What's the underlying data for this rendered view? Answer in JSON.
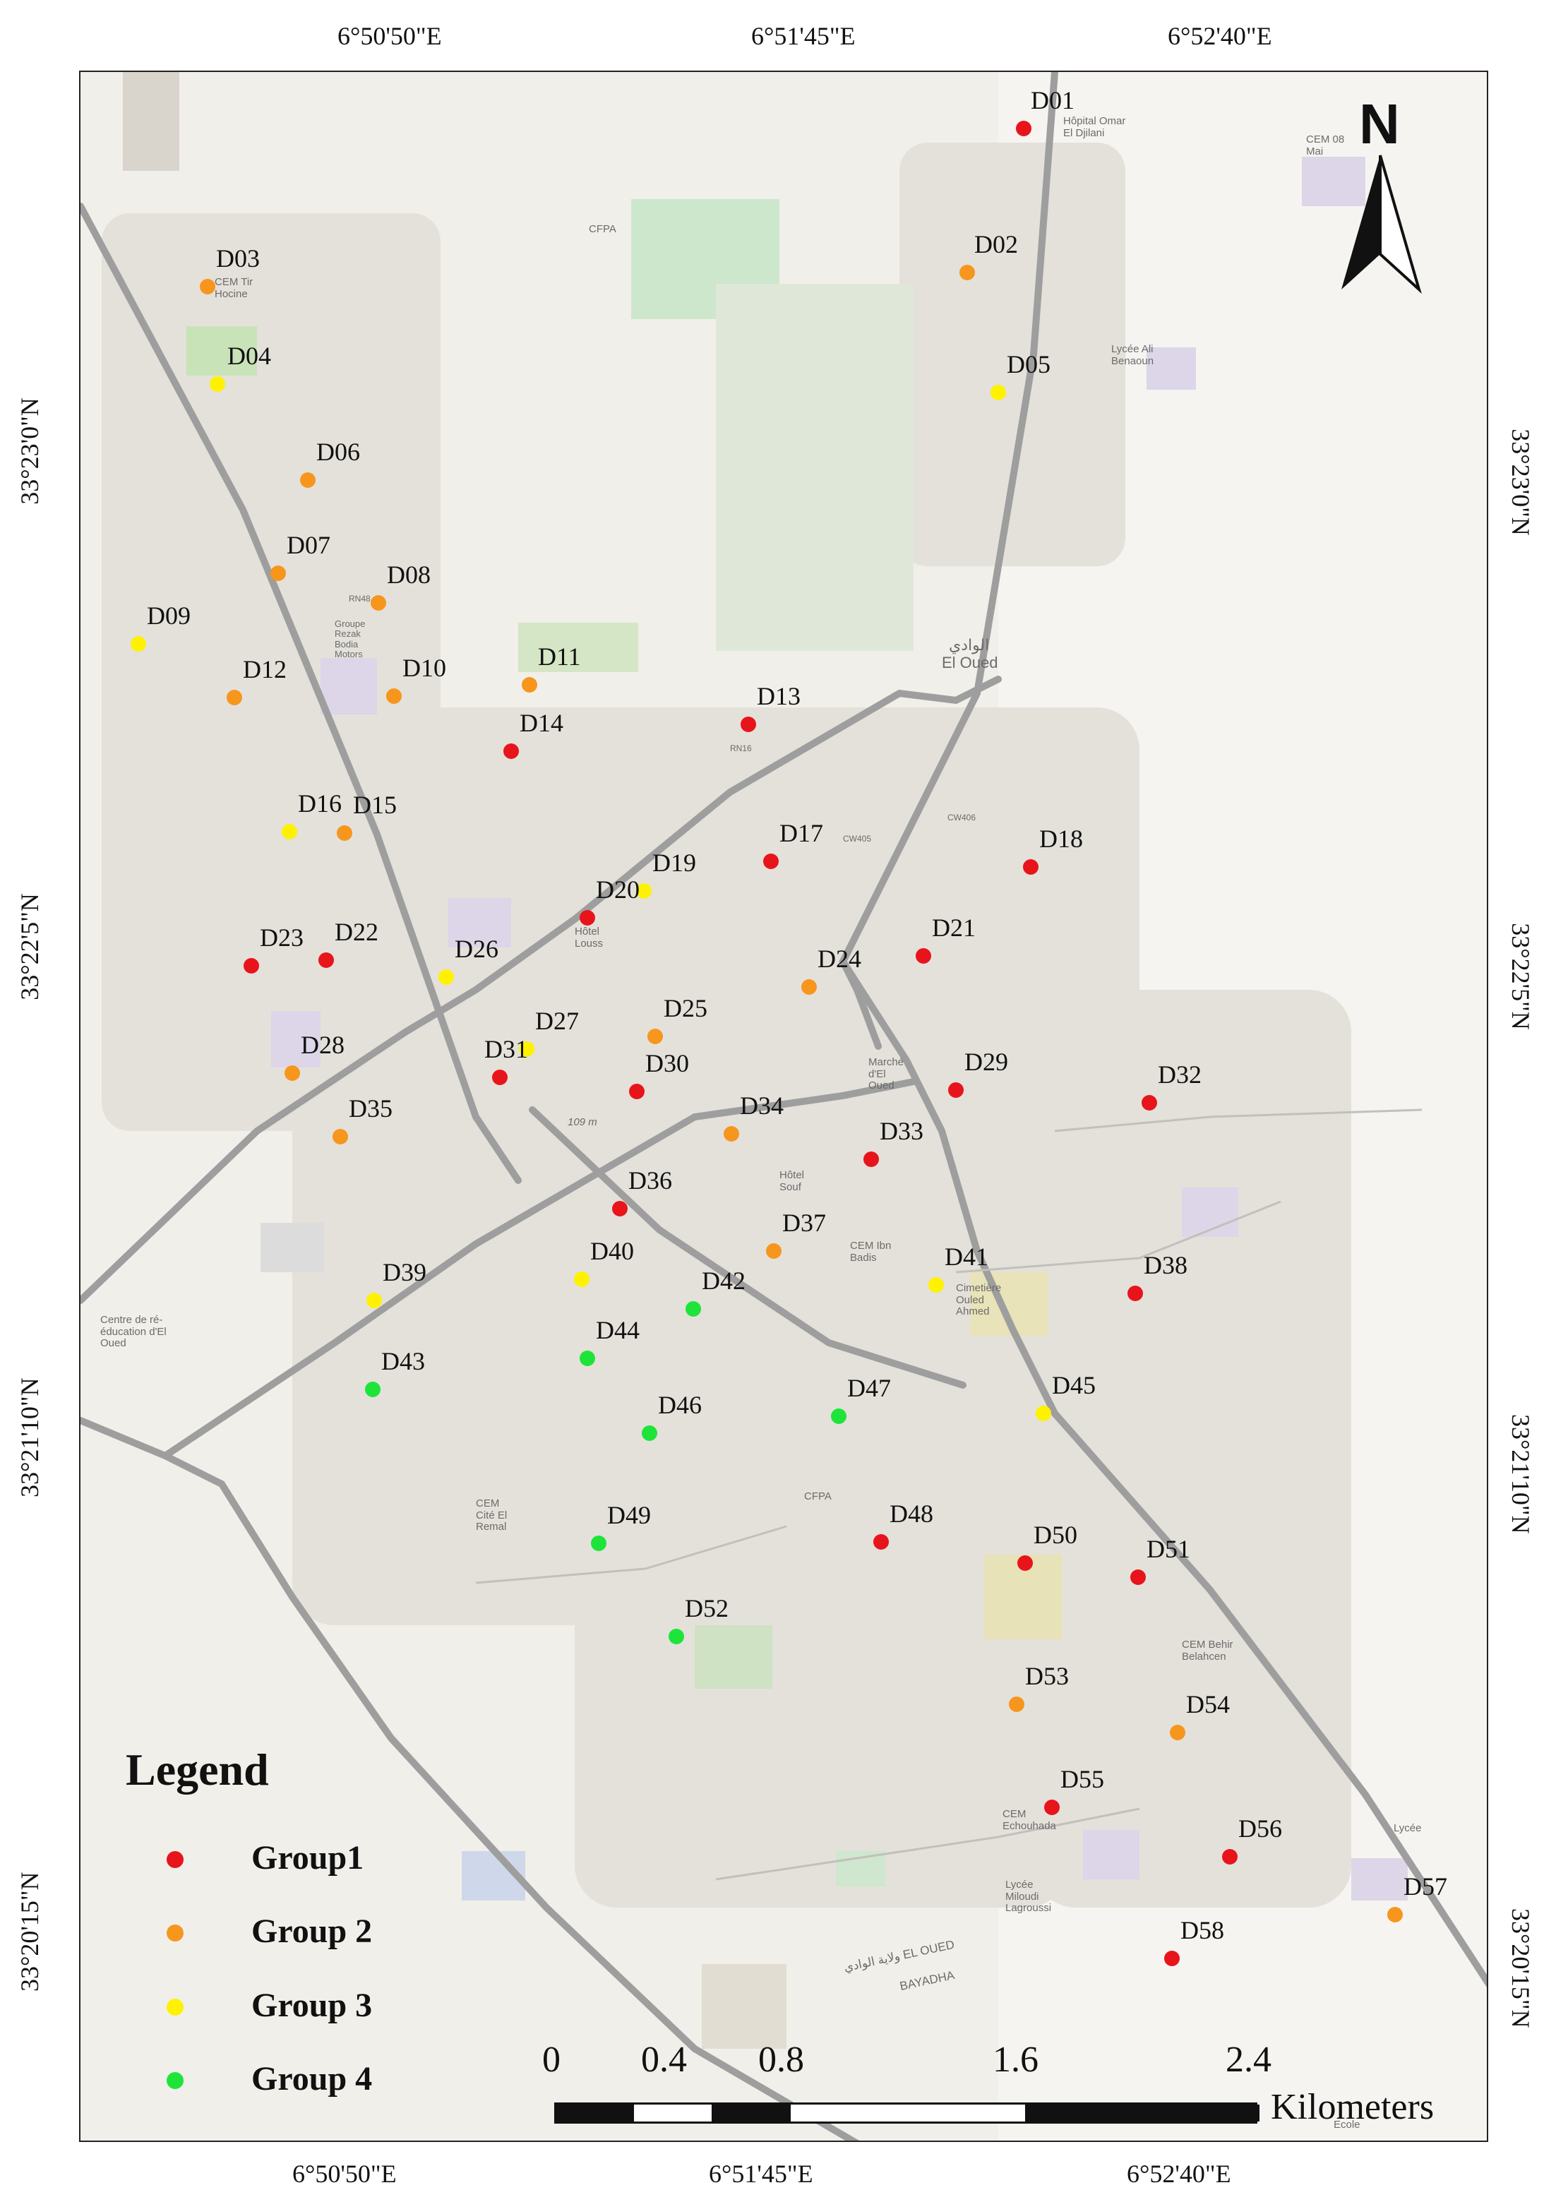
{
  "graticule": {
    "top": [
      "6°50'50\"E",
      "6°51'45\"E",
      "6°52'40\"E"
    ],
    "bottom": [
      "6°50'50\"E",
      "6°51'45\"E",
      "6°52'40\"E"
    ],
    "left": [
      "33°23'0\"N",
      "33°22'5\"N",
      "33°21'10\"N",
      "33°20'15\"N"
    ],
    "right": [
      "33°23'0\"N",
      "33°22'5\"N",
      "33°21'10\"N",
      "33°20'15\"N"
    ]
  },
  "north_arrow": {
    "label": "N"
  },
  "legend": {
    "title": "Legend",
    "items": [
      {
        "label": "Group1",
        "color": "#e8141c"
      },
      {
        "label": "Group 2",
        "color": "#f7961d"
      },
      {
        "label": "Group 3",
        "color": "#fff200"
      },
      {
        "label": "Group 4",
        "color": "#1ee43a"
      }
    ]
  },
  "scale_bar": {
    "ticks": [
      "0",
      "0.4",
      "0.8",
      "1.6",
      "2.4"
    ],
    "unit": "Kilometers"
  },
  "place_labels": [
    "Hôpital Omar El Djilani",
    "CFPA",
    "CEM 08 Mai",
    "Lycée Ali Benaoun",
    "CEM Tir Hocine",
    "Hôtel Louss",
    "Marché d'El Oued",
    "الوادي",
    "El Oued",
    "RN48",
    "RN16",
    "CW406",
    "CW405",
    "Hôtel Souf",
    "CEM Ibn Badis",
    "Cimetière Ouled Ahmed",
    "Centre de ré-éducation d'El Oued",
    "109 m",
    "CEM Cité El Remal",
    "CFPA",
    "CEM Behir Belahcen",
    "CEM Echouhada",
    "Lycée Miloudi Lagroussi",
    "Lycée",
    "ولاية الوادي EL OUED",
    "BAYADHA",
    "Groupe Rezak Bodia Motors",
    "Ecole"
  ],
  "sampling_points": [
    {
      "id": "D01",
      "group": 1
    },
    {
      "id": "D02",
      "group": 2
    },
    {
      "id": "D03",
      "group": 2
    },
    {
      "id": "D04",
      "group": 3
    },
    {
      "id": "D05",
      "group": 3
    },
    {
      "id": "D06",
      "group": 2
    },
    {
      "id": "D07",
      "group": 2
    },
    {
      "id": "D08",
      "group": 2
    },
    {
      "id": "D09",
      "group": 3
    },
    {
      "id": "D10",
      "group": 2
    },
    {
      "id": "D11",
      "group": 2
    },
    {
      "id": "D12",
      "group": 2
    },
    {
      "id": "D13",
      "group": 1
    },
    {
      "id": "D14",
      "group": 1
    },
    {
      "id": "D15",
      "group": 2
    },
    {
      "id": "D16",
      "group": 3
    },
    {
      "id": "D17",
      "group": 1
    },
    {
      "id": "D18",
      "group": 1
    },
    {
      "id": "D19",
      "group": 3
    },
    {
      "id": "D20",
      "group": 1
    },
    {
      "id": "D21",
      "group": 1
    },
    {
      "id": "D22",
      "group": 1
    },
    {
      "id": "D23",
      "group": 1
    },
    {
      "id": "D24",
      "group": 2
    },
    {
      "id": "D25",
      "group": 2
    },
    {
      "id": "D26",
      "group": 3
    },
    {
      "id": "D27",
      "group": 3
    },
    {
      "id": "D28",
      "group": 2
    },
    {
      "id": "D29",
      "group": 1
    },
    {
      "id": "D30",
      "group": 1
    },
    {
      "id": "D31",
      "group": 1
    },
    {
      "id": "D32",
      "group": 1
    },
    {
      "id": "D33",
      "group": 1
    },
    {
      "id": "D34",
      "group": 2
    },
    {
      "id": "D35",
      "group": 2
    },
    {
      "id": "D36",
      "group": 1
    },
    {
      "id": "D37",
      "group": 2
    },
    {
      "id": "D38",
      "group": 1
    },
    {
      "id": "D39",
      "group": 3
    },
    {
      "id": "D40",
      "group": 3
    },
    {
      "id": "D41",
      "group": 3
    },
    {
      "id": "D42",
      "group": 4
    },
    {
      "id": "D43",
      "group": 4
    },
    {
      "id": "D44",
      "group": 4
    },
    {
      "id": "D45",
      "group": 3
    },
    {
      "id": "D46",
      "group": 4
    },
    {
      "id": "D47",
      "group": 4
    },
    {
      "id": "D48",
      "group": 1
    },
    {
      "id": "D49",
      "group": 4
    },
    {
      "id": "D50",
      "group": 1
    },
    {
      "id": "D51",
      "group": 1
    },
    {
      "id": "D52",
      "group": 4
    },
    {
      "id": "D53",
      "group": 2
    },
    {
      "id": "D54",
      "group": 2
    },
    {
      "id": "D55",
      "group": 1
    },
    {
      "id": "D56",
      "group": 1
    },
    {
      "id": "D57",
      "group": 2
    },
    {
      "id": "D58",
      "group": 1
    }
  ]
}
